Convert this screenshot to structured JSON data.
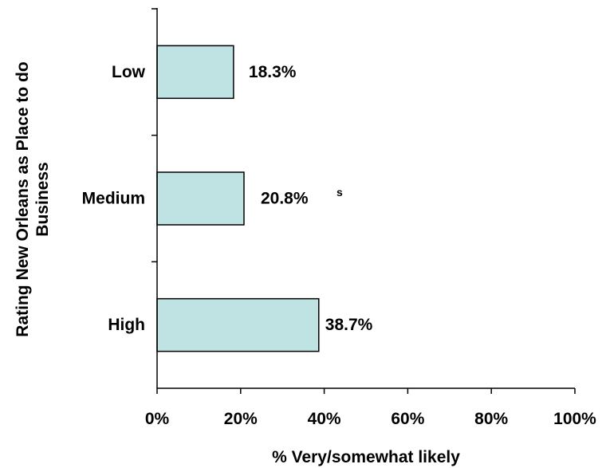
{
  "chart_data": {
    "type": "bar",
    "orientation": "horizontal",
    "categories": [
      "Low",
      "Medium",
      "High"
    ],
    "values": [
      18.3,
      20.8,
      38.7
    ],
    "value_labels": [
      "18.3%",
      "20.8%",
      "38.7%"
    ],
    "annotations": [
      {
        "category": "Medium",
        "text": "s"
      }
    ],
    "xlabel": "% Very/somewhat likely",
    "ylabel": "Rating New Orleans as Place to do Business",
    "xlim": [
      0,
      100
    ],
    "x_tick_values": [
      0,
      20,
      40,
      60,
      80,
      100
    ],
    "x_tick_labels": [
      "0%",
      "20%",
      "40%",
      "60%",
      "80%",
      "100%"
    ],
    "bar_color": "#bfe3e3",
    "bar_edge_color": "#000000",
    "grid": false,
    "legend": "none"
  }
}
